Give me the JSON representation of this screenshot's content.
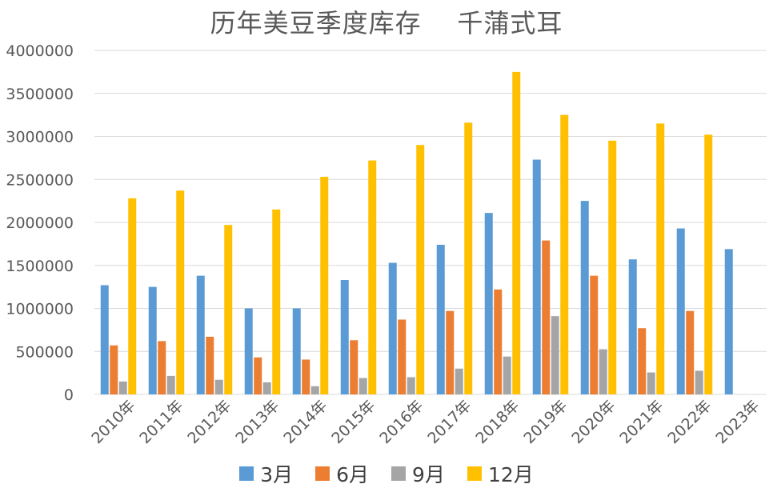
{
  "chart_data": {
    "type": "bar",
    "title": "历年美豆季度库存    千蒲式耳",
    "categories": [
      "2010年",
      "2011年",
      "2012年",
      "2013年",
      "2014年",
      "2015年",
      "2016年",
      "2017年",
      "2018年",
      "2019年",
      "2020年",
      "2021年",
      "2022年",
      "2023年"
    ],
    "series": [
      {
        "name": "3月",
        "color": "#5B9BD5",
        "values": [
          1270000,
          1250000,
          1380000,
          1000000,
          1000000,
          1330000,
          1530000,
          1740000,
          2110000,
          2730000,
          2250000,
          1570000,
          1930000,
          1690000
        ]
      },
      {
        "name": "6月",
        "color": "#ED7D31",
        "values": [
          570000,
          620000,
          670000,
          430000,
          405000,
          630000,
          870000,
          970000,
          1220000,
          1790000,
          1380000,
          770000,
          970000,
          null
        ]
      },
      {
        "name": "9月",
        "color": "#A5A5A5",
        "values": [
          150000,
          215000,
          170000,
          140000,
          95000,
          190000,
          200000,
          300000,
          440000,
          910000,
          525000,
          255000,
          275000,
          null
        ]
      },
      {
        "name": "12月",
        "color": "#FFC000",
        "values": [
          2280000,
          2370000,
          1970000,
          2150000,
          2530000,
          2720000,
          2900000,
          3160000,
          3750000,
          3250000,
          2950000,
          3150000,
          3020000,
          null
        ]
      }
    ],
    "yticks": [
      "0",
      "500000",
      "1000000",
      "1500000",
      "2000000",
      "2500000",
      "3000000",
      "3500000",
      "4000000"
    ],
    "ylim": [
      0,
      4000000
    ],
    "grid": true,
    "legend": "bottom"
  }
}
